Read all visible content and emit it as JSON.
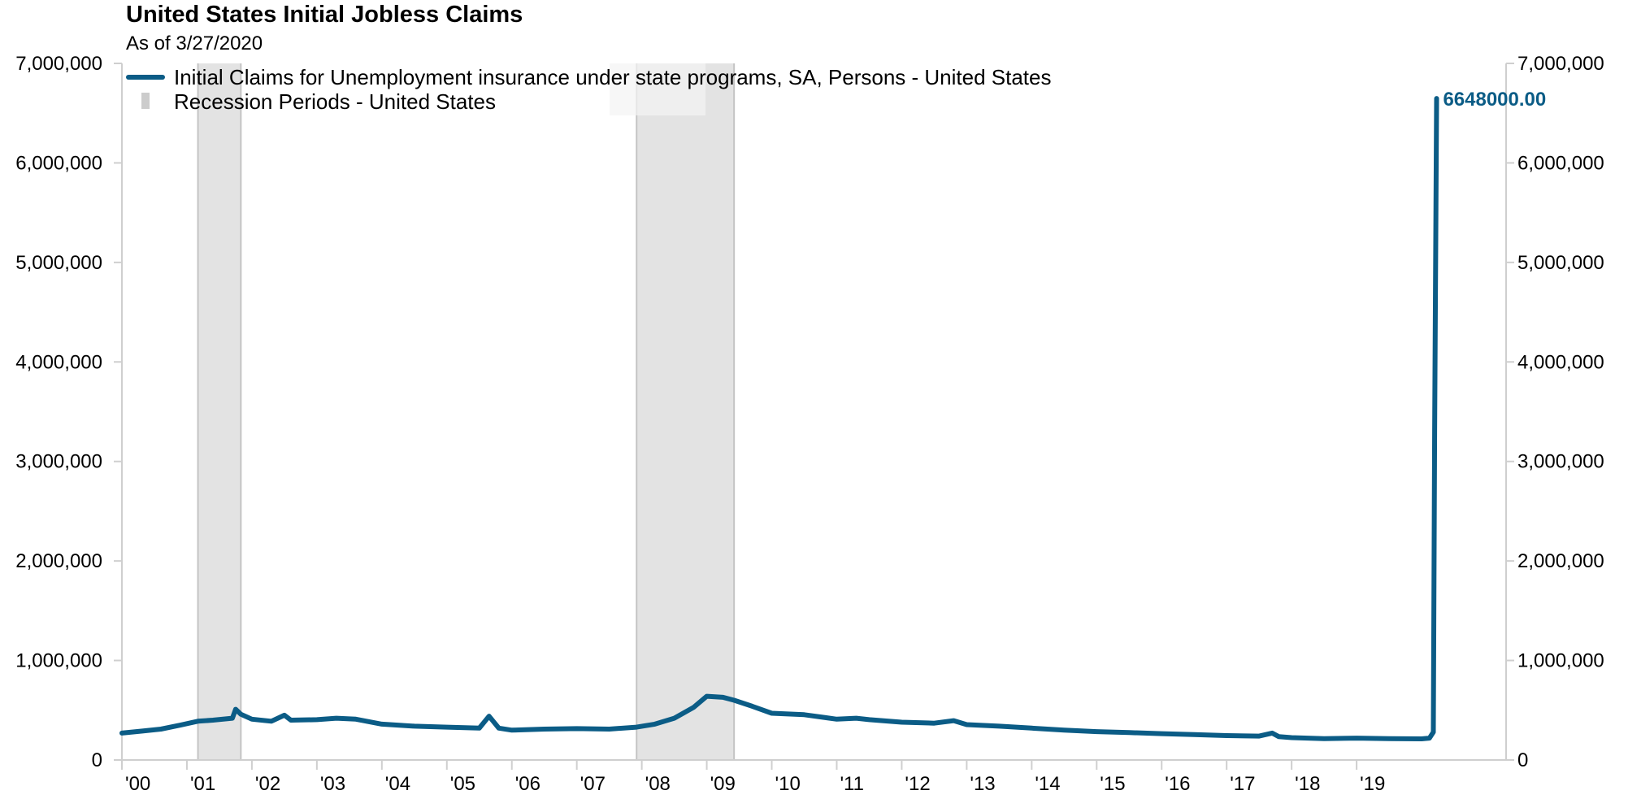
{
  "chart_data": {
    "type": "line",
    "title": "United States Initial Jobless Claims",
    "subtitle": "As of 3/27/2020",
    "colors": {
      "line": "#0b5c86",
      "recession": "#e3e3e3",
      "recession_edge": "#c4c4c4",
      "axis": "#cfcfcf"
    },
    "y_axis_left": {
      "ticks": [
        0,
        1000000,
        2000000,
        3000000,
        4000000,
        5000000,
        6000000,
        7000000
      ],
      "labels": [
        "0",
        "1,000,000",
        "2,000,000",
        "3,000,000",
        "4,000,000",
        "5,000,000",
        "6,000,000",
        "7,000,000"
      ]
    },
    "y_axis_right": {
      "ticks": [
        0,
        1000000,
        2000000,
        3000000,
        4000000,
        5000000,
        6000000,
        7000000
      ],
      "labels": [
        "0",
        "1,000,000",
        "2,000,000",
        "3,000,000",
        "4,000,000",
        "5,000,000",
        "6,000,000",
        "7,000,000"
      ]
    },
    "ylim": [
      0,
      7000000
    ],
    "xlim": [
      2000.0,
      2021.3
    ],
    "x_axis": {
      "ticks": [
        2000,
        2001,
        2002,
        2003,
        2004,
        2005,
        2006,
        2007,
        2008,
        2009,
        2010,
        2011,
        2012,
        2013,
        2014,
        2015,
        2016,
        2017,
        2018,
        2019
      ],
      "labels": [
        "'00",
        "'01",
        "'02",
        "'03",
        "'04",
        "'05",
        "'06",
        "'07",
        "'08",
        "'09",
        "'10",
        "'11",
        "'12",
        "'13",
        "'14",
        "'15",
        "'16",
        "'17",
        "'18",
        "'19"
      ]
    },
    "grid": false,
    "legend": {
      "placement": "top-left",
      "entries": [
        {
          "name": "Initial Claims for Unemployment insurance under state programs, SA, Persons - United States",
          "type": "line"
        },
        {
          "name": "Recession Periods - United States",
          "type": "area"
        }
      ]
    },
    "recessions": [
      {
        "start": 2001.17,
        "end": 2001.83
      },
      {
        "start": 2007.92,
        "end": 2009.42
      }
    ],
    "series": [
      {
        "name": "Initial Claims for Unemployment insurance under state programs, SA, Persons - United States",
        "points": [
          [
            2000.0,
            270000
          ],
          [
            2000.3,
            290000
          ],
          [
            2000.6,
            310000
          ],
          [
            2000.9,
            350000
          ],
          [
            2001.17,
            390000
          ],
          [
            2001.4,
            400000
          ],
          [
            2001.7,
            420000
          ],
          [
            2001.75,
            510000
          ],
          [
            2001.83,
            460000
          ],
          [
            2002.0,
            410000
          ],
          [
            2002.3,
            390000
          ],
          [
            2002.5,
            450000
          ],
          [
            2002.6,
            400000
          ],
          [
            2003.0,
            405000
          ],
          [
            2003.3,
            420000
          ],
          [
            2003.6,
            410000
          ],
          [
            2004.0,
            360000
          ],
          [
            2004.5,
            340000
          ],
          [
            2005.0,
            330000
          ],
          [
            2005.5,
            320000
          ],
          [
            2005.65,
            440000
          ],
          [
            2005.8,
            320000
          ],
          [
            2006.0,
            300000
          ],
          [
            2006.5,
            310000
          ],
          [
            2007.0,
            315000
          ],
          [
            2007.5,
            310000
          ],
          [
            2007.92,
            330000
          ],
          [
            2008.2,
            360000
          ],
          [
            2008.5,
            420000
          ],
          [
            2008.8,
            530000
          ],
          [
            2009.0,
            640000
          ],
          [
            2009.25,
            630000
          ],
          [
            2009.42,
            600000
          ],
          [
            2009.7,
            540000
          ],
          [
            2010.0,
            470000
          ],
          [
            2010.5,
            455000
          ],
          [
            2011.0,
            410000
          ],
          [
            2011.3,
            420000
          ],
          [
            2011.5,
            405000
          ],
          [
            2012.0,
            380000
          ],
          [
            2012.5,
            370000
          ],
          [
            2012.8,
            395000
          ],
          [
            2013.0,
            355000
          ],
          [
            2013.5,
            340000
          ],
          [
            2014.0,
            320000
          ],
          [
            2014.5,
            300000
          ],
          [
            2015.0,
            285000
          ],
          [
            2015.5,
            275000
          ],
          [
            2016.0,
            265000
          ],
          [
            2016.5,
            255000
          ],
          [
            2017.0,
            245000
          ],
          [
            2017.5,
            240000
          ],
          [
            2017.7,
            270000
          ],
          [
            2017.8,
            235000
          ],
          [
            2018.0,
            225000
          ],
          [
            2018.5,
            215000
          ],
          [
            2019.0,
            220000
          ],
          [
            2019.5,
            215000
          ],
          [
            2020.0,
            212000
          ],
          [
            2020.12,
            220000
          ],
          [
            2020.18,
            280000
          ],
          [
            2020.2,
            3307000
          ],
          [
            2020.23,
            6648000
          ]
        ]
      }
    ],
    "end_label": "6648000.00"
  }
}
